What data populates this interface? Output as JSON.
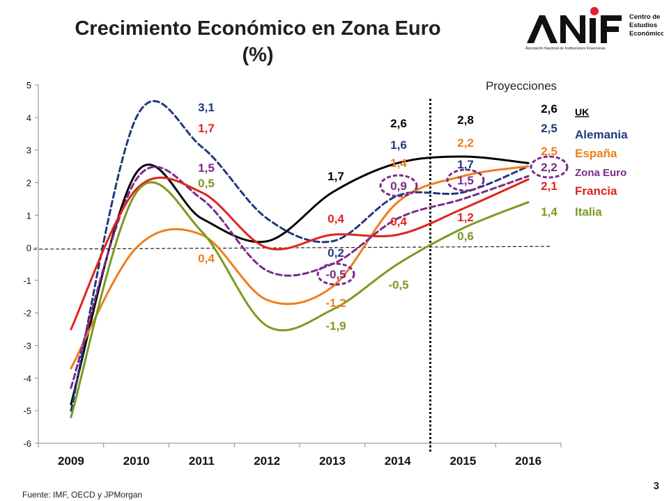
{
  "title": {
    "line1": "Crecimiento Económico en Zona Euro",
    "line2": "(%)"
  },
  "logo": {
    "text": "ANIF",
    "subtitle": "Asociación Nacional de Instituciones Financieras",
    "center_line1": "Centro de",
    "center_line2": "Estudios",
    "center_line3": "Económicos",
    "dot_color": "#e4202c"
  },
  "projections_label": "Proyecciones",
  "source": "Fuente: IMF, OECD y JPMorgan",
  "page_number": "3",
  "chart_data": {
    "type": "line",
    "x": [
      "2009",
      "2010",
      "2011",
      "2012",
      "2013",
      "2014",
      "2015",
      "2016"
    ],
    "ylim": [
      -6,
      5
    ],
    "yticks": [
      5,
      4,
      3,
      2,
      1,
      0,
      -1,
      -2,
      -3,
      -4,
      -5,
      -6
    ],
    "grid": false,
    "zero_line": "dashed",
    "projection_start_year": 2014.5,
    "series": [
      {
        "name": "UK",
        "color": "#000000",
        "style": "solid",
        "values": [
          -4.8,
          2.3,
          0.9,
          0.2,
          1.7,
          2.6,
          2.8,
          2.6
        ]
      },
      {
        "name": "Alemania",
        "color": "#1f3a7a",
        "style": "dashed",
        "values": [
          -5.0,
          4.0,
          3.1,
          0.9,
          0.2,
          1.6,
          1.7,
          2.5
        ]
      },
      {
        "name": "España",
        "color": "#f07c1a",
        "style": "solid",
        "values": [
          -3.7,
          0.0,
          0.4,
          -1.6,
          -1.2,
          1.4,
          2.2,
          2.5
        ]
      },
      {
        "name": "Zona Euro",
        "color": "#7b2a8c",
        "style": "dashed",
        "values": [
          -4.3,
          2.1,
          1.5,
          -0.7,
          -0.5,
          0.9,
          1.5,
          2.2
        ]
      },
      {
        "name": "Francia",
        "color": "#e1221c",
        "style": "solid",
        "values": [
          -2.5,
          1.8,
          1.7,
          0.0,
          0.4,
          0.4,
          1.2,
          2.1
        ]
      },
      {
        "name": "Italia",
        "color": "#7a9a1e",
        "style": "solid",
        "values": [
          -5.2,
          1.7,
          0.5,
          -2.4,
          -1.9,
          -0.5,
          0.6,
          1.4
        ]
      }
    ],
    "data_labels": [
      {
        "text": "3,1",
        "color": "#1f3a7a",
        "year": 2011,
        "value": 3.1
      },
      {
        "text": "1,7",
        "color": "#e1221c",
        "year": 2011,
        "value": 1.7
      },
      {
        "text": "1,5",
        "color": "#7b2a8c",
        "year": 2011,
        "value": 1.5
      },
      {
        "text": "0,5",
        "color": "#7a9a1e",
        "year": 2011,
        "value": 0.5
      },
      {
        "text": "0,4",
        "color": "#f07c1a",
        "year": 2011,
        "value": 0.4
      },
      {
        "text": "1,7",
        "color": "#000000",
        "year": 2013,
        "value": 1.7
      },
      {
        "text": "0,4",
        "color": "#e1221c",
        "year": 2013,
        "value": 0.4
      },
      {
        "text": "0,2",
        "color": "#1f3a7a",
        "year": 2013,
        "value": 0.2
      },
      {
        "text": "-0,5",
        "color": "#7b2a8c",
        "year": 2013,
        "value": -0.5,
        "circled": true
      },
      {
        "text": "-1,2",
        "color": "#f07c1a",
        "year": 2013,
        "value": -1.2
      },
      {
        "text": "-1,9",
        "color": "#7a9a1e",
        "year": 2013,
        "value": -1.9
      },
      {
        "text": "2,6",
        "color": "#000000",
        "year": 2014,
        "value": 2.6
      },
      {
        "text": "1,6",
        "color": "#1f3a7a",
        "year": 2014,
        "value": 1.6
      },
      {
        "text": "1,4",
        "color": "#f07c1a",
        "year": 2014,
        "value": 1.4
      },
      {
        "text": "0,9",
        "color": "#7b2a8c",
        "year": 2014,
        "value": 0.9,
        "circled": true
      },
      {
        "text": "0,4",
        "color": "#e1221c",
        "year": 2014,
        "value": 0.4
      },
      {
        "text": "-0,5",
        "color": "#7a9a1e",
        "year": 2014,
        "value": -0.5
      },
      {
        "text": "2,8",
        "color": "#000000",
        "year": 2015,
        "value": 2.8
      },
      {
        "text": "2,2",
        "color": "#f07c1a",
        "year": 2015,
        "value": 2.2
      },
      {
        "text": "1,7",
        "color": "#1f3a7a",
        "year": 2015,
        "value": 1.7
      },
      {
        "text": "1,5",
        "color": "#7b2a8c",
        "year": 2015,
        "value": 1.5,
        "circled": true
      },
      {
        "text": "1,2",
        "color": "#e1221c",
        "year": 2015,
        "value": 1.2
      },
      {
        "text": "0,6",
        "color": "#7a9a1e",
        "year": 2015,
        "value": 0.6
      },
      {
        "text": "2,6",
        "color": "#000000",
        "year": 2016,
        "value": 2.6
      },
      {
        "text": "2,5",
        "color": "#1f3a7a",
        "year": 2016,
        "value": 2.5
      },
      {
        "text": "2,5",
        "color": "#f07c1a",
        "year": 2016,
        "value": 2.5
      },
      {
        "text": "2,2",
        "color": "#7b2a8c",
        "year": 2016,
        "value": 2.2,
        "circled": true
      },
      {
        "text": "2,1",
        "color": "#e1221c",
        "year": 2016,
        "value": 2.1
      },
      {
        "text": "1,4",
        "color": "#7a9a1e",
        "year": 2016,
        "value": 1.4
      }
    ],
    "legend": {
      "placement": "right",
      "entries": [
        {
          "text": "UK",
          "color": "#000000",
          "underline": true
        },
        {
          "text": "Alemania",
          "color": "#1f3a7a"
        },
        {
          "text": "España",
          "color": "#f07c1a"
        },
        {
          "text": "Zona Euro",
          "color": "#7b2a8c"
        },
        {
          "text": "Francia",
          "color": "#e1221c"
        },
        {
          "text": "Italia",
          "color": "#7a9a1e"
        }
      ]
    }
  }
}
